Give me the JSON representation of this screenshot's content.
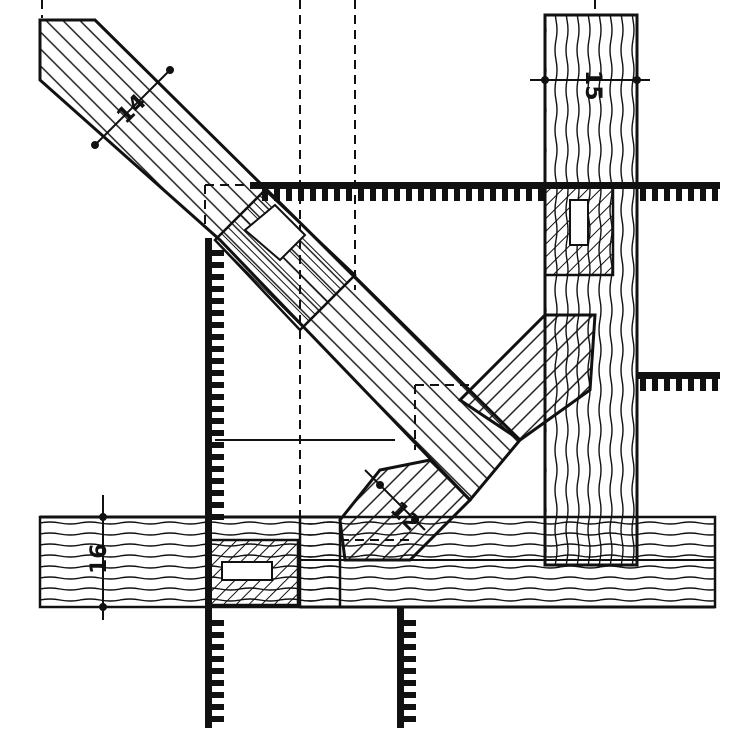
{
  "drawing": {
    "colors": {
      "ink": "#111111",
      "paper": "#ffffff"
    },
    "dimensions": {
      "brace_width": "14",
      "post_width": "15",
      "sill_height": "16",
      "strut_width": "12"
    }
  }
}
